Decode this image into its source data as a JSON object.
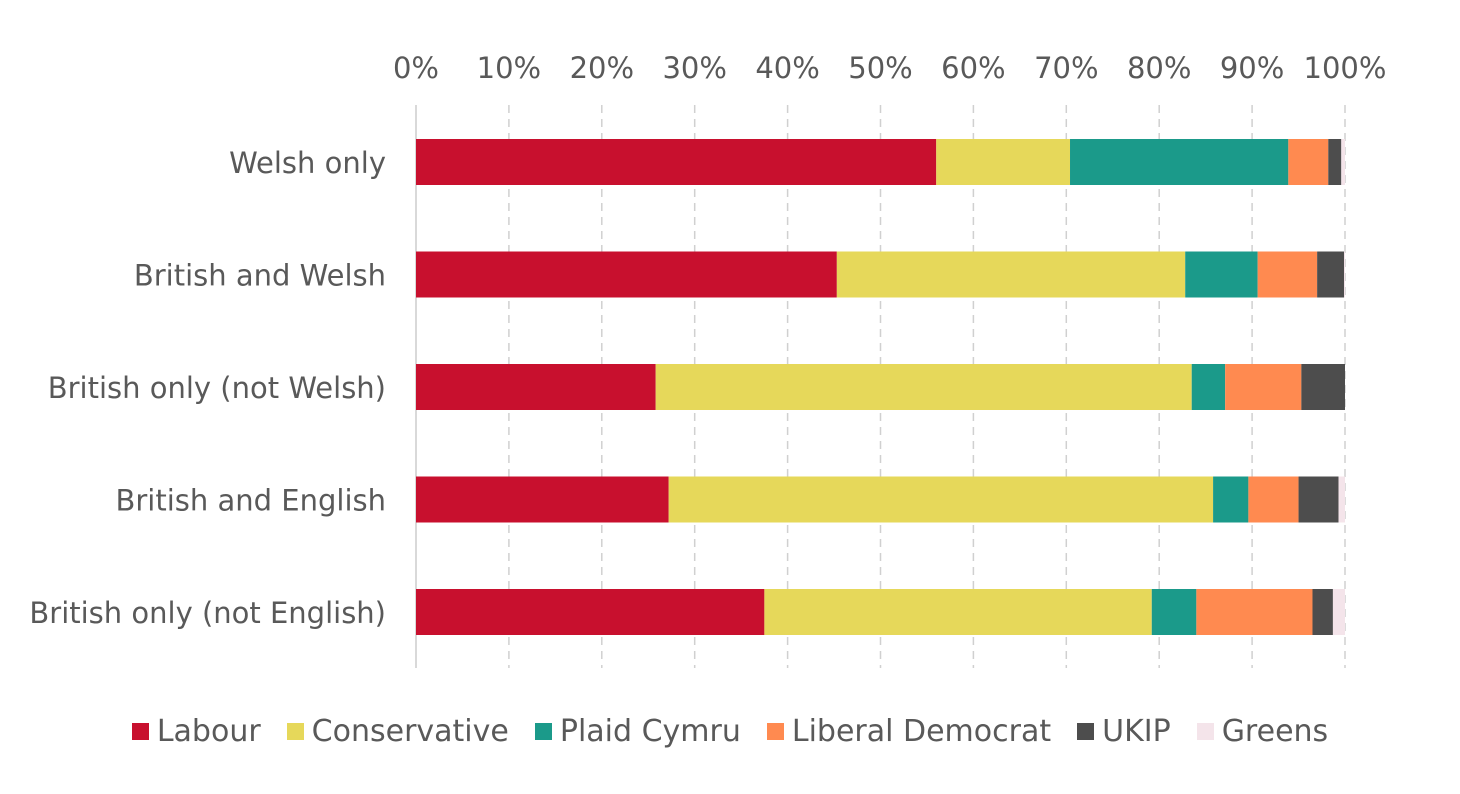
{
  "chart_data": {
    "type": "bar",
    "orientation": "horizontal",
    "stacked": "percent",
    "categories": [
      "Welsh only",
      "British and Welsh",
      "British only (not Welsh)",
      "British and English",
      "British only (not English)"
    ],
    "x_ticks": [
      "0%",
      "10%",
      "20%",
      "30%",
      "40%",
      "50%",
      "60%",
      "70%",
      "80%",
      "90%",
      "100%"
    ],
    "xlim": [
      0,
      100
    ],
    "x_axis_position": "top",
    "grid": "vertical dashed",
    "legend_position": "bottom",
    "series": [
      {
        "name": "Labour",
        "color": "#C8102E",
        "values": [
          56,
          45.3,
          25.8,
          27.2,
          37.5
        ]
      },
      {
        "name": "Conservative",
        "color": "#E6D85A",
        "values": [
          14.4,
          37.5,
          57.7,
          58.6,
          41.7
        ]
      },
      {
        "name": "Plaid Cymru",
        "color": "#1B9A8A",
        "values": [
          23.5,
          7.8,
          3.6,
          3.8,
          4.8
        ]
      },
      {
        "name": "Liberal Democrat",
        "color": "#FF8A50",
        "values": [
          4.3,
          6.4,
          8.2,
          5.4,
          12.5
        ]
      },
      {
        "name": "UKIP",
        "color": "#4D4D4D",
        "values": [
          1.4,
          2.9,
          4.7,
          4.3,
          2.2
        ]
      },
      {
        "name": "Greens",
        "color": "#F4E4EA",
        "values": [
          0.4,
          0.1,
          0.0,
          0.7,
          1.3
        ]
      }
    ]
  }
}
